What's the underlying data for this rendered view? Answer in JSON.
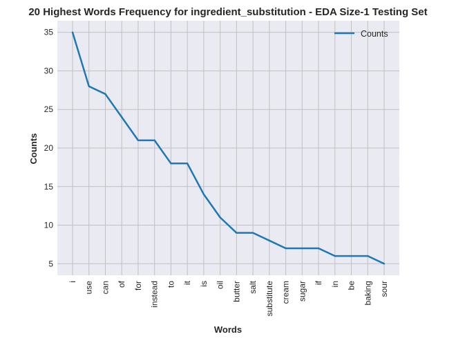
{
  "chart_data": {
    "type": "line",
    "title": "20 Highest Words Frequency for ingredient_substitution - EDA Size-1 Testing Set",
    "xlabel": "Words",
    "ylabel": "Counts",
    "categories": [
      "i",
      "use",
      "can",
      "of",
      "for",
      "instead",
      "to",
      "it",
      "is",
      "oil",
      "butter",
      "salt",
      "substitute",
      "cream",
      "sugar",
      "if",
      "in",
      "be",
      "baking",
      "sour"
    ],
    "series": [
      {
        "name": "Counts",
        "values": [
          35,
          28,
          27,
          24,
          21,
          21,
          18,
          18,
          14,
          11,
          9,
          9,
          8,
          7,
          7,
          7,
          6,
          6,
          6,
          5
        ]
      }
    ],
    "yticks": [
      5,
      10,
      15,
      20,
      25,
      30,
      35
    ],
    "ylim": [
      3.5,
      36.5
    ],
    "grid": true,
    "legend_position": "top-right",
    "colors": {
      "line": "#1f77b4",
      "plot_bg": "#eaeaf2",
      "grid": "#c0c0c0"
    }
  }
}
